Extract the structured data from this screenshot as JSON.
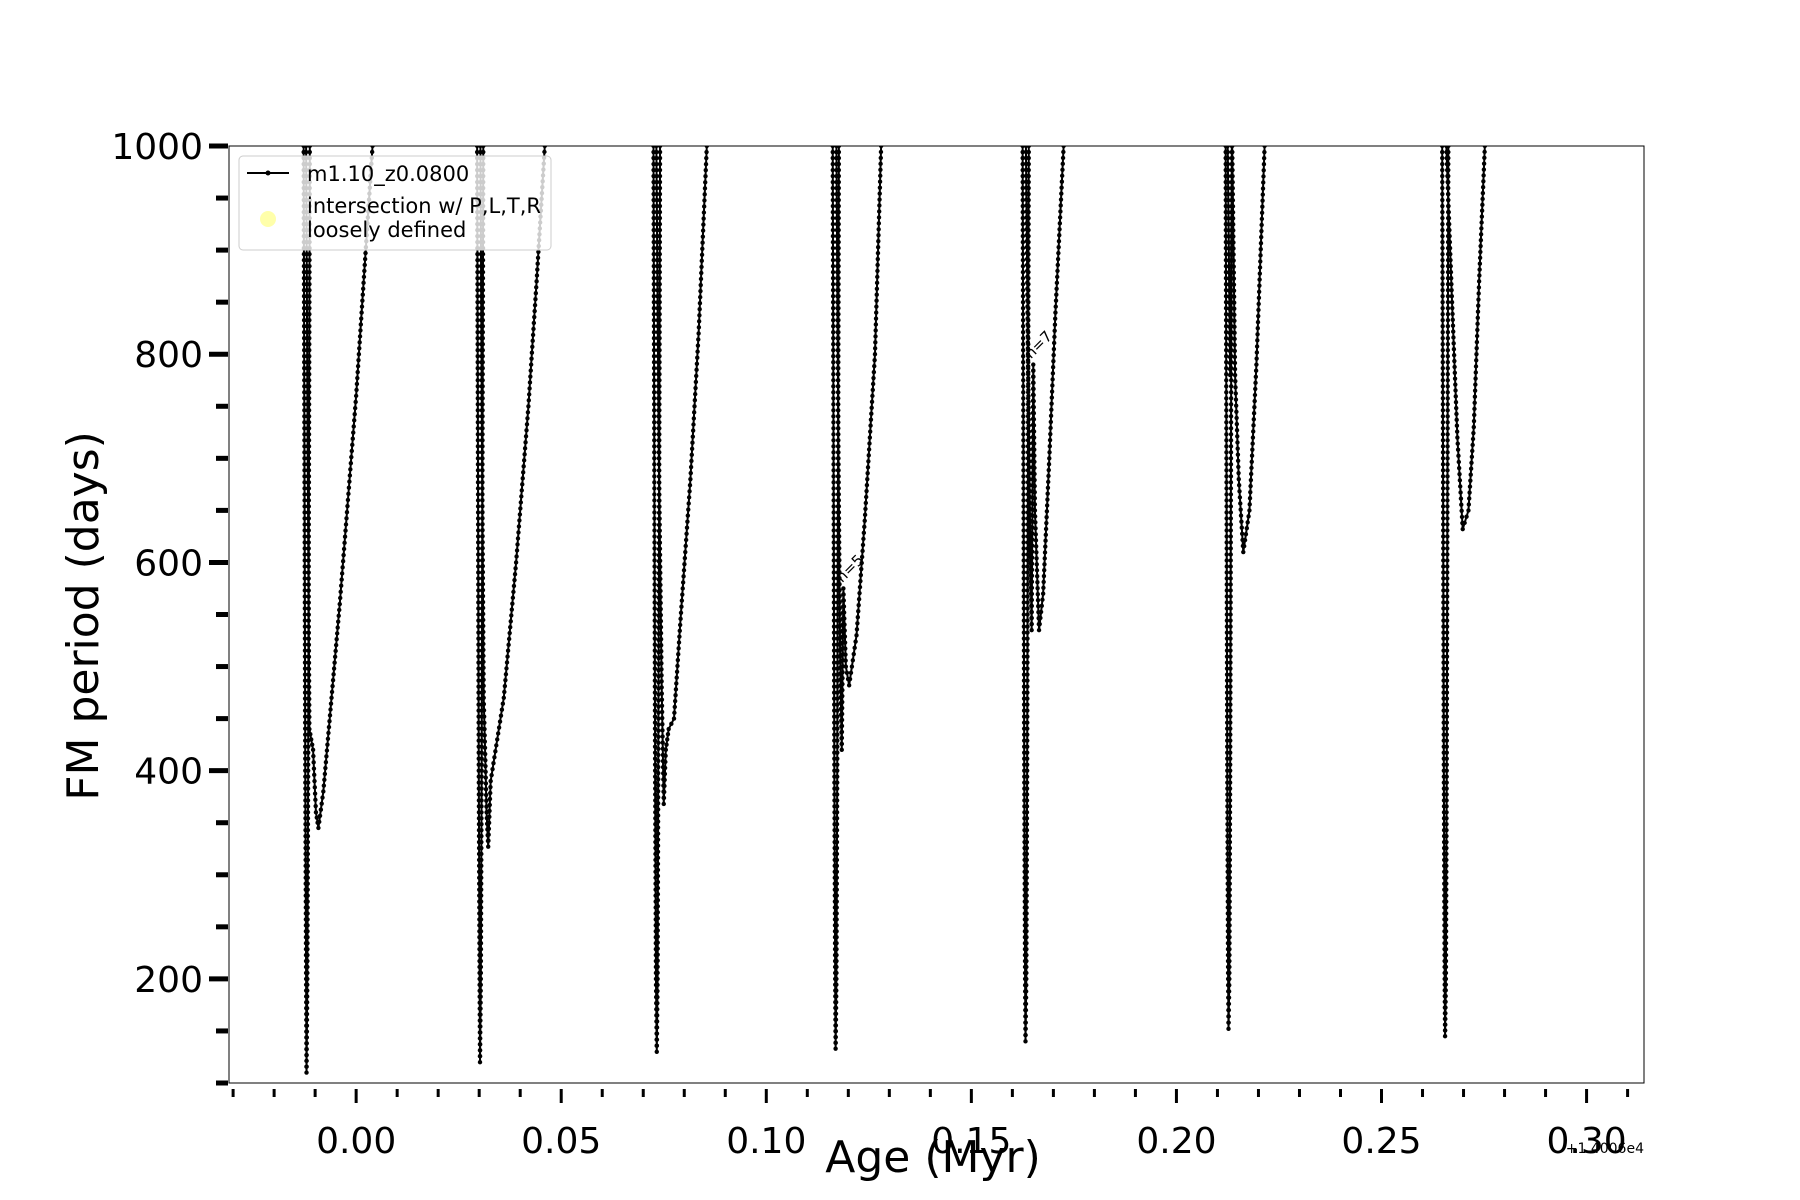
{
  "chart_data": {
    "type": "line",
    "xlabel": "Age (Myr)",
    "ylabel": "FM period (days)",
    "x_offset_label": "+1.4006e4",
    "xlim": [
      -0.031,
      0.314
    ],
    "ylim": [
      100,
      1000
    ],
    "x_ticks": [
      0.0,
      0.05,
      0.1,
      0.15,
      0.2,
      0.25,
      0.3
    ],
    "x_tick_labels": [
      "0.00",
      "0.05",
      "0.10",
      "0.15",
      "0.20",
      "0.25",
      "0.30"
    ],
    "x_minor_step": 0.01,
    "y_ticks": [
      200,
      400,
      600,
      800,
      1000
    ],
    "y_tick_labels": [
      "200",
      "400",
      "600",
      "800",
      "1000"
    ],
    "y_minor_step": 50,
    "grid": false,
    "legend_position": "top-left",
    "legend": [
      {
        "label": "m1.10_z0.0800",
        "marker": "line-dot",
        "color": "#000000"
      },
      {
        "label": "intersection w/ P,L,T,R\nloosely defined",
        "marker": "circle",
        "color": "#ffffaa"
      }
    ],
    "annotations": [
      {
        "text": "n=5",
        "x": 0.1185,
        "y": 580
      },
      {
        "text": "n=7",
        "x": 0.1645,
        "y": 795
      }
    ],
    "series": [
      {
        "name": "m1.10_z0.0800",
        "color": "#000000",
        "segments": [
          [
            [
              -0.0128,
              1000
            ],
            [
              -0.0126,
              700
            ],
            [
              -0.0124,
              400
            ],
            [
              -0.0122,
              200
            ],
            [
              -0.0121,
              110
            ],
            [
              -0.0119,
              200
            ],
            [
              -0.0117,
              400
            ],
            [
              -0.0115,
              700
            ],
            [
              -0.0113,
              1000
            ]
          ],
          [
            [
              -0.0122,
              1000
            ],
            [
              -0.0118,
              700
            ],
            [
              -0.0114,
              440
            ],
            [
              -0.0105,
              420
            ],
            [
              -0.0098,
              360
            ],
            [
              -0.0092,
              345
            ],
            [
              -0.008,
              380
            ],
            [
              -0.006,
              470
            ],
            [
              -0.004,
              560
            ],
            [
              -0.002,
              660
            ],
            [
              0.0,
              760
            ],
            [
              0.002,
              880
            ],
            [
              0.004,
              1000
            ]
          ],
          [
            [
              0.0295,
              1000
            ],
            [
              0.0297,
              700
            ],
            [
              0.0299,
              400
            ],
            [
              0.0301,
              200
            ],
            [
              0.0302,
              120
            ],
            [
              0.0304,
              200
            ],
            [
              0.0306,
              400
            ],
            [
              0.0308,
              700
            ],
            [
              0.031,
              1000
            ]
          ],
          [
            [
              0.0303,
              1000
            ],
            [
              0.0307,
              700
            ],
            [
              0.0311,
              470
            ],
            [
              0.0315,
              410
            ],
            [
              0.0318,
              360
            ],
            [
              0.0322,
              327
            ],
            [
              0.0328,
              390
            ],
            [
              0.036,
              470
            ],
            [
              0.039,
              600
            ],
            [
              0.042,
              750
            ],
            [
              0.044,
              870
            ],
            [
              0.046,
              1000
            ]
          ],
          [
            [
              0.0725,
              1000
            ],
            [
              0.0727,
              700
            ],
            [
              0.0729,
              400
            ],
            [
              0.0731,
              200
            ],
            [
              0.0733,
              130
            ],
            [
              0.0735,
              200
            ],
            [
              0.0737,
              450
            ],
            [
              0.0739,
              700
            ],
            [
              0.0741,
              1000
            ]
          ],
          [
            [
              0.0732,
              1000
            ],
            [
              0.0738,
              700
            ],
            [
              0.0745,
              480
            ],
            [
              0.075,
              368
            ],
            [
              0.0755,
              420
            ],
            [
              0.0762,
              440
            ],
            [
              0.0775,
              450
            ],
            [
              0.079,
              540
            ],
            [
              0.0815,
              680
            ],
            [
              0.0835,
              820
            ],
            [
              0.0855,
              1000
            ]
          ],
          [
            [
              0.1162,
              1000
            ],
            [
              0.1164,
              700
            ],
            [
              0.1166,
              400
            ],
            [
              0.1168,
              200
            ],
            [
              0.1169,
              133
            ],
            [
              0.1171,
              200
            ],
            [
              0.1173,
              400
            ],
            [
              0.1175,
              700
            ],
            [
              0.1177,
              1000
            ]
          ],
          [
            [
              0.1171,
              1000
            ],
            [
              0.1176,
              700
            ],
            [
              0.118,
              510
            ],
            [
              0.1184,
              420
            ],
            [
              0.1188,
              575
            ],
            [
              0.1194,
              500
            ],
            [
              0.1202,
              482
            ],
            [
              0.122,
              530
            ],
            [
              0.124,
              640
            ],
            [
              0.1265,
              800
            ],
            [
              0.128,
              1000
            ]
          ],
          [
            [
              0.1625,
              1000
            ],
            [
              0.1627,
              700
            ],
            [
              0.1629,
              400
            ],
            [
              0.1631,
              200
            ],
            [
              0.1632,
              140
            ],
            [
              0.1634,
              200
            ],
            [
              0.1636,
              400
            ],
            [
              0.1638,
              700
            ],
            [
              0.164,
              1000
            ]
          ],
          [
            [
              0.1633,
              1000
            ],
            [
              0.1638,
              800
            ],
            [
              0.1643,
              640
            ],
            [
              0.1647,
              535
            ],
            [
              0.1651,
              790
            ],
            [
              0.1655,
              650
            ],
            [
              0.1665,
              535
            ],
            [
              0.1675,
              570
            ],
            [
              0.169,
              700
            ],
            [
              0.1705,
              840
            ],
            [
              0.1725,
              1000
            ]
          ],
          [
            [
              0.212,
              1000
            ],
            [
              0.2122,
              700
            ],
            [
              0.2124,
              400
            ],
            [
              0.2126,
              200
            ],
            [
              0.2127,
              152
            ],
            [
              0.2129,
              200
            ],
            [
              0.2131,
              400
            ],
            [
              0.2133,
              700
            ],
            [
              0.2135,
              1000
            ]
          ],
          [
            [
              0.2125,
              1000
            ],
            [
              0.2131,
              780
            ],
            [
              0.2136,
              1000
            ],
            [
              0.2143,
              780
            ],
            [
              0.2152,
              680
            ],
            [
              0.2163,
              610
            ],
            [
              0.2178,
              650
            ],
            [
              0.2195,
              790
            ],
            [
              0.2215,
              1000
            ]
          ],
          [
            [
              0.2648,
              1000
            ],
            [
              0.265,
              700
            ],
            [
              0.2652,
              400
            ],
            [
              0.2654,
              200
            ],
            [
              0.2655,
              145
            ],
            [
              0.2657,
              200
            ],
            [
              0.2659,
              400
            ],
            [
              0.2661,
              700
            ],
            [
              0.2663,
              1000
            ]
          ],
          [
            [
              0.2658,
              1000
            ],
            [
              0.2672,
              850
            ],
            [
              0.2685,
              720
            ],
            [
              0.2698,
              632
            ],
            [
              0.2712,
              650
            ],
            [
              0.2725,
              730
            ],
            [
              0.2738,
              870
            ],
            [
              0.2752,
              1000
            ]
          ]
        ]
      }
    ]
  }
}
